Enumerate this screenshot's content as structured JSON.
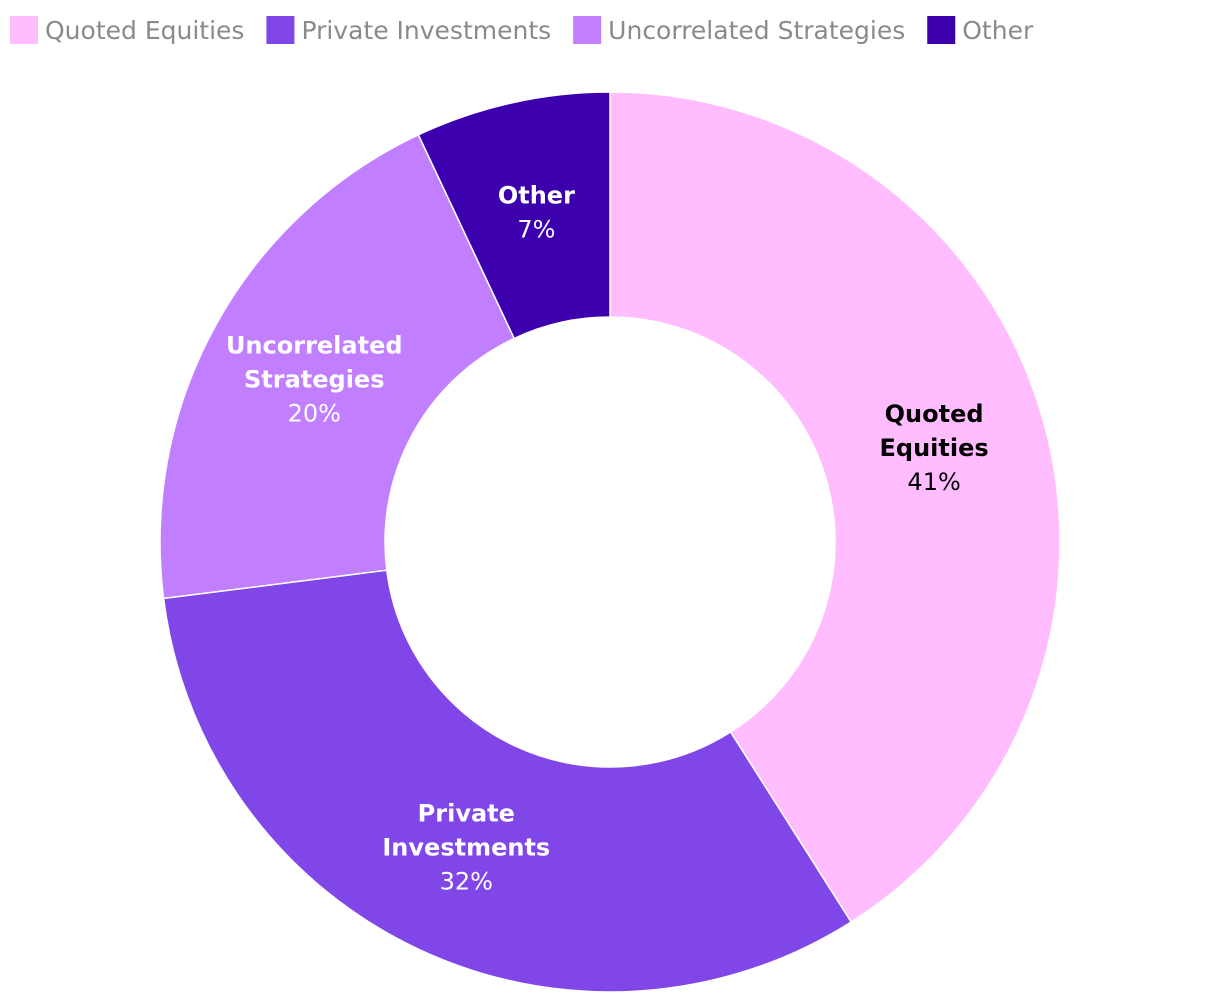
{
  "chart_data": {
    "type": "pie",
    "variant": "donut",
    "title": "",
    "legend_position": "top-left",
    "categories": [
      "Quoted Equities",
      "Private Investments",
      "Uncorrelated Strategies",
      "Other"
    ],
    "values": [
      41,
      32,
      20,
      7
    ],
    "value_labels": [
      "41%",
      "32%",
      "20%",
      "7%"
    ],
    "slice_labels": [
      [
        "Quoted",
        "Equities"
      ],
      [
        "Private",
        "Investments"
      ],
      [
        "Uncorrelated",
        "Strategies"
      ],
      [
        "Other"
      ]
    ],
    "colors": [
      "#ffbdff",
      "#8046e8",
      "#c17eff",
      "#3c00af"
    ],
    "label_colors": [
      "#000000",
      "#ffffff",
      "#ffffff",
      "#ffffff"
    ]
  }
}
